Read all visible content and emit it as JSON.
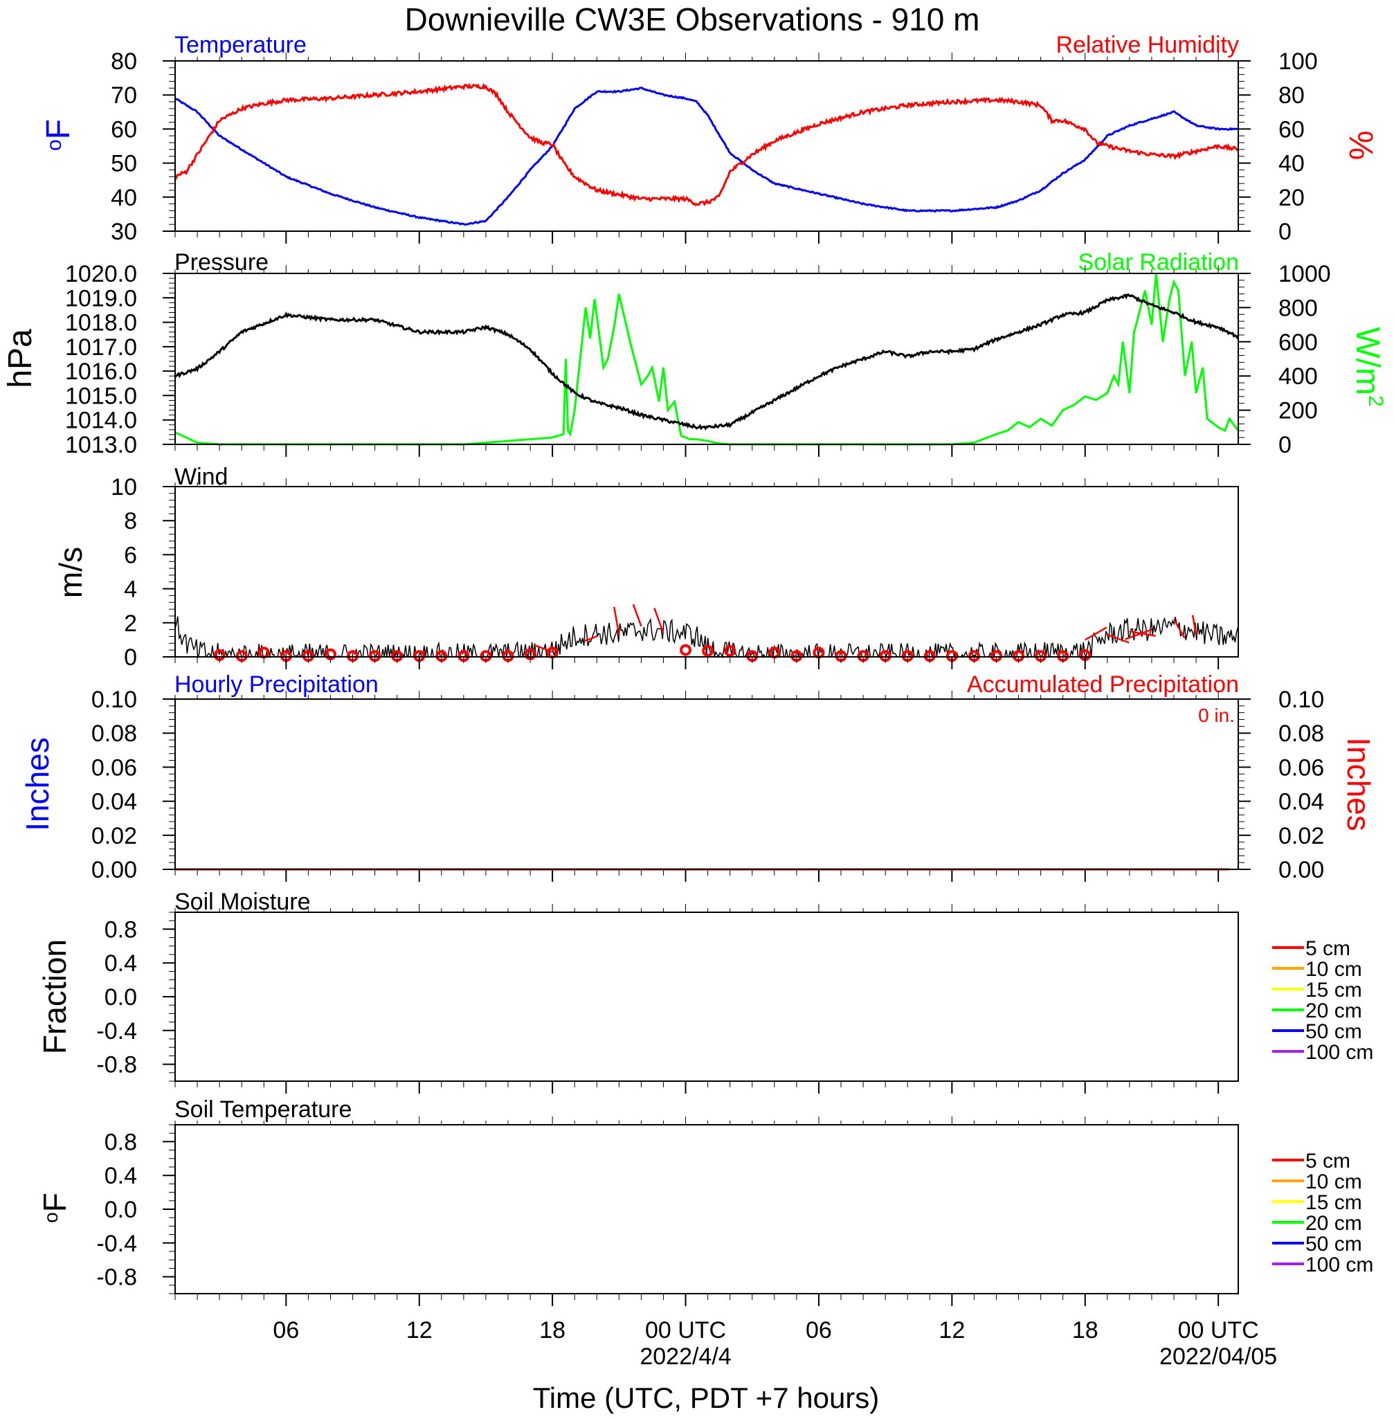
{
  "title": "Downieville CW3E Observations - 910 m",
  "xlabel": "Time (UTC, PDT +7 hours)",
  "x_ticks": [
    {
      "hour": 6,
      "label": "06"
    },
    {
      "hour": 12,
      "label": "12"
    },
    {
      "hour": 18,
      "label": "18"
    },
    {
      "hour": 24,
      "label": "00 UTC",
      "date": "2022/4/4"
    },
    {
      "hour": 30,
      "label": "06"
    },
    {
      "hour": 36,
      "label": "12"
    },
    {
      "hour": 42,
      "label": "18"
    },
    {
      "hour": 48,
      "label": "00 UTC",
      "date": "2022/04/05"
    }
  ],
  "x_range_hours": [
    1,
    48.9
  ],
  "colors": {
    "temperature": "#0000ff",
    "humidity": "#ff0000",
    "pressure": "#000000",
    "solar": "#00ff00",
    "wind": "#000000",
    "wind_barb": "#ff0000",
    "precip": "#ff0000"
  },
  "panels": {
    "temp_rh": {
      "left_title": "Temperature",
      "right_title": "Relative Humidity",
      "left_unit": "oF",
      "right_unit": "%",
      "left_ticks": [
        "80",
        "70",
        "60",
        "50",
        "40",
        "30"
      ],
      "right_ticks": [
        "100",
        "80",
        "60",
        "40",
        "20",
        "0"
      ]
    },
    "pressure_solar": {
      "left_title": "Pressure",
      "right_title": "Solar Radiation",
      "left_unit": "hPa",
      "right_unit": "W/m2",
      "left_ticks": [
        "1020.0",
        "1019.0",
        "1018.0",
        "1017.0",
        "1016.0",
        "1015.0",
        "1014.0",
        "1013.0"
      ],
      "right_ticks": [
        "1000",
        "800",
        "600",
        "400",
        "200",
        "0"
      ]
    },
    "wind": {
      "left_title": "Wind",
      "left_unit": "m/s",
      "left_ticks": [
        "10",
        "8",
        "6",
        "4",
        "2",
        "0"
      ]
    },
    "precip": {
      "left_title": "Hourly Precipitation",
      "right_title": "Accumulated Precipitation",
      "total_label": "0 in.",
      "left_unit": "Inches",
      "right_unit": "Inches",
      "left_ticks": [
        "0.10",
        "0.08",
        "0.06",
        "0.04",
        "0.02",
        "0.00"
      ],
      "right_ticks": [
        "0.10",
        "0.08",
        "0.06",
        "0.04",
        "0.02",
        "0.00"
      ]
    },
    "soil_moisture": {
      "left_title": "Soil Moisture",
      "left_unit": "Fraction",
      "left_ticks": [
        "0.8",
        "0.4",
        "0.0",
        "-0.4",
        "-0.8"
      ],
      "legend": [
        {
          "label": "5 cm",
          "color": "#ff0000"
        },
        {
          "label": "10 cm",
          "color": "#ffa500"
        },
        {
          "label": "15 cm",
          "color": "#ffff00"
        },
        {
          "label": "20 cm",
          "color": "#00ff00"
        },
        {
          "label": "50 cm",
          "color": "#0000ff"
        },
        {
          "label": "100 cm",
          "color": "#a020f0"
        }
      ]
    },
    "soil_temp": {
      "left_title": "Soil Temperature",
      "left_unit": "oF",
      "left_ticks": [
        "0.8",
        "0.4",
        "0.0",
        "-0.4",
        "-0.8"
      ],
      "legend": [
        {
          "label": "5 cm",
          "color": "#ff0000"
        },
        {
          "label": "10 cm",
          "color": "#ffa500"
        },
        {
          "label": "15 cm",
          "color": "#ffff00"
        },
        {
          "label": "20 cm",
          "color": "#00ff00"
        },
        {
          "label": "50 cm",
          "color": "#0000ff"
        },
        {
          "label": "100 cm",
          "color": "#a020f0"
        }
      ]
    }
  },
  "chart_data": [
    {
      "type": "line",
      "title": "Temperature",
      "ylabel": "oF",
      "ylim": [
        30,
        80
      ],
      "x_units": "hours from 2022-04-03 00 UTC",
      "series": [
        {
          "name": "Temperature",
          "x": [
            1,
            2,
            3,
            4,
            5,
            6,
            8,
            10,
            12,
            14,
            15,
            16,
            17,
            18,
            19,
            20,
            21,
            22,
            23,
            24,
            24.5,
            25,
            26,
            27,
            28,
            30,
            32,
            34,
            36,
            38,
            39,
            40,
            41,
            42,
            43,
            44,
            45,
            46,
            46.5,
            47,
            48,
            48.9
          ],
          "y": [
            69,
            65,
            58,
            54,
            50,
            46,
            41,
            37,
            34,
            32,
            33,
            40,
            48,
            55,
            66,
            71,
            71,
            72,
            70,
            69,
            68,
            64,
            53,
            48,
            44,
            41,
            38,
            36,
            36,
            37,
            39,
            42,
            47,
            51,
            58,
            61,
            63,
            65,
            63,
            61,
            60,
            60
          ]
        }
      ]
    },
    {
      "type": "line",
      "title": "Relative Humidity",
      "ylabel": "%",
      "ylim": [
        0,
        100
      ],
      "x_units": "hours from 2022-04-03 00 UTC",
      "series": [
        {
          "name": "Relative Humidity",
          "x": [
            1,
            1.5,
            2,
            3,
            4,
            5,
            6,
            8,
            10,
            12,
            14,
            15,
            15.5,
            16,
            17,
            17.5,
            18,
            18.5,
            19,
            20,
            22,
            23,
            24,
            24.5,
            25,
            25.5,
            26,
            27,
            28,
            30,
            32,
            34,
            36,
            38,
            39,
            40,
            40.5,
            41,
            42,
            42.5,
            43,
            44,
            45,
            46,
            47,
            48,
            48.9
          ],
          "y": [
            32,
            35,
            45,
            65,
            72,
            75,
            77,
            78,
            80,
            82,
            85,
            85,
            80,
            70,
            55,
            52,
            51,
            40,
            32,
            24,
            19,
            19,
            19,
            16,
            17,
            20,
            35,
            45,
            53,
            63,
            70,
            74,
            76,
            77,
            76,
            74,
            65,
            65,
            60,
            52,
            50,
            47,
            45,
            44,
            47,
            50,
            48
          ]
        }
      ]
    },
    {
      "type": "line",
      "title": "Pressure",
      "ylabel": "hPa",
      "ylim": [
        1013,
        1020
      ],
      "x_units": "hours from 2022-04-03 00 UTC",
      "series": [
        {
          "name": "Pressure",
          "x": [
            1,
            2,
            3,
            4,
            6,
            8,
            10,
            12,
            14,
            15,
            16,
            17,
            18,
            19,
            20,
            21,
            22,
            23,
            24,
            24.5,
            25,
            26,
            27,
            28,
            29,
            30,
            31,
            32,
            33,
            34,
            35,
            36,
            37,
            38,
            39,
            40,
            41,
            42,
            43,
            44,
            45,
            46,
            47,
            48,
            48.9
          ],
          "y": [
            1015.8,
            1016.1,
            1016.8,
            1017.6,
            1018.3,
            1018.1,
            1018.1,
            1017.6,
            1017.6,
            1017.8,
            1017.5,
            1016.9,
            1015.9,
            1015.1,
            1014.7,
            1014.5,
            1014.2,
            1014.0,
            1013.8,
            1013.7,
            1013.7,
            1013.8,
            1014.3,
            1014.8,
            1015.3,
            1015.8,
            1016.2,
            1016.5,
            1016.8,
            1016.6,
            1016.8,
            1016.8,
            1016.9,
            1017.3,
            1017.6,
            1017.9,
            1018.3,
            1018.4,
            1018.9,
            1019.1,
            1018.7,
            1018.4,
            1018.0,
            1017.8,
            1017.4
          ]
        }
      ]
    },
    {
      "type": "line",
      "title": "Solar Radiation",
      "ylabel": "W/m2",
      "ylim": [
        0,
        1000
      ],
      "x_units": "hours from 2022-04-03 00 UTC",
      "series": [
        {
          "name": "Solar Radiation",
          "x": [
            1,
            1.5,
            2,
            3,
            6,
            10,
            13,
            14,
            15,
            16,
            17,
            18,
            18.5,
            18.6,
            18.7,
            18.8,
            19,
            19.5,
            19.7,
            19.9,
            20.1,
            20.3,
            20.5,
            20.8,
            21,
            21.5,
            21.8,
            22.0,
            22.3,
            22.5,
            22.8,
            23,
            23.2,
            23.5,
            23.8,
            24,
            24.2,
            24.5,
            25,
            25.5,
            26,
            26.5,
            27,
            28,
            30,
            32,
            34,
            36,
            37,
            38,
            38.5,
            39,
            39.5,
            40,
            40.5,
            41,
            41.5,
            42,
            42.5,
            43,
            43.3,
            43.5,
            43.7,
            44,
            44.2,
            44.5,
            44.7,
            45,
            45.2,
            45.5,
            45.8,
            46,
            46.2,
            46.5,
            46.8,
            47,
            47.3,
            47.5,
            48,
            48.3,
            48.5,
            48.9
          ],
          "y": [
            70,
            40,
            10,
            0,
            0,
            0,
            0,
            0,
            10,
            20,
            30,
            40,
            60,
            500,
            80,
            60,
            200,
            800,
            620,
            850,
            650,
            450,
            500,
            700,
            880,
            600,
            450,
            350,
            400,
            450,
            250,
            450,
            200,
            250,
            50,
            40,
            30,
            30,
            20,
            5,
            0,
            0,
            0,
            0,
            0,
            0,
            0,
            0,
            10,
            60,
            80,
            130,
            100,
            150,
            110,
            200,
            230,
            280,
            260,
            300,
            400,
            350,
            600,
            300,
            650,
            800,
            900,
            700,
            1000,
            600,
            850,
            950,
            900,
            400,
            600,
            300,
            450,
            150,
            100,
            80,
            150,
            80
          ]
        }
      ]
    },
    {
      "type": "line",
      "title": "Wind",
      "ylabel": "m/s",
      "ylim": [
        0,
        10
      ],
      "x_units": "hours from 2022-04-03 00 UTC",
      "series": [
        {
          "name": "Wind speed",
          "x": [
            1,
            1.5,
            2,
            3,
            6,
            10,
            14,
            17,
            18,
            19,
            20,
            21,
            22,
            23,
            24,
            24.5,
            25,
            26,
            27,
            30,
            34,
            38,
            42,
            43,
            44,
            45,
            46,
            47,
            48,
            48.9
          ],
          "y": [
            2.0,
            0.8,
            0.3,
            0.1,
            0.1,
            0.1,
            0.1,
            0.2,
            0.4,
            1.2,
            1.4,
            1.3,
            1.6,
            1.5,
            1.4,
            1.2,
            0.5,
            0.2,
            0.1,
            0.1,
            0.1,
            0.1,
            0.3,
            1.3,
            1.6,
            1.6,
            1.8,
            1.5,
            1.2,
            1.1
          ]
        }
      ],
      "hourly_markers": {
        "x": [
          3,
          4,
          5,
          6,
          7,
          8,
          9,
          10,
          11,
          12,
          13,
          14,
          15,
          16,
          17,
          18,
          24,
          25,
          26,
          27,
          28,
          29,
          30,
          31,
          32,
          33,
          34,
          35,
          36,
          37,
          38,
          39,
          40,
          41,
          42
        ],
        "y": [
          0.1,
          0.05,
          0.25,
          0.05,
          0.05,
          0.15,
          0.05,
          0.05,
          0.05,
          0.05,
          0.05,
          0.05,
          0.05,
          0.05,
          0.15,
          0.25,
          0.4,
          0.35,
          0.35,
          0.05,
          0.25,
          0.05,
          0.25,
          0.05,
          0.05,
          0.05,
          0.05,
          0.05,
          0.05,
          0.05,
          0.05,
          0.05,
          0.05,
          0.05,
          0.1
        ]
      },
      "barbs": {
        "x": [
          18,
          20,
          21,
          22,
          23,
          42,
          43,
          44,
          45,
          46,
          47
        ],
        "y": [
          0.3,
          1.2,
          1.3,
          1.8,
          1.4,
          1.0,
          1.3,
          1.5,
          1.6,
          2.2,
          1.3
        ],
        "angle_deg": [
          20,
          200,
          80,
          110,
          70,
          30,
          200,
          350,
          340,
          300,
          80
        ],
        "length": [
          1.2,
          0.8,
          1.7,
          1.4,
          1.6,
          1.5,
          1.4,
          1.6,
          1.7,
          1.3,
          1.2
        ]
      }
    },
    {
      "type": "line",
      "title": "Hourly Precipitation",
      "ylabel": "Inches",
      "ylim": [
        0,
        0.1
      ],
      "x_units": "hours from 2022-04-03 00 UTC",
      "series": [
        {
          "name": "Accumulated Precipitation",
          "x": [
            1,
            48.9
          ],
          "y": [
            0,
            0
          ]
        }
      ]
    },
    {
      "type": "line",
      "title": "Soil Moisture",
      "ylabel": "Fraction",
      "ylim": [
        -1,
        1
      ],
      "series": []
    },
    {
      "type": "line",
      "title": "Soil Temperature",
      "ylabel": "oF",
      "ylim": [
        -1,
        1
      ],
      "series": []
    }
  ]
}
